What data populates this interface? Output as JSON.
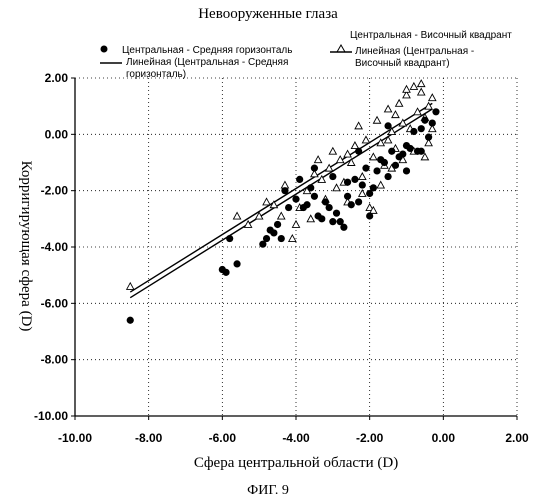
{
  "figure_caption": "ФИГ. 9",
  "chart_data": {
    "type": "scatter",
    "title": "Невооруженные глаза",
    "xlabel": "Сфера центральной области (D)",
    "ylabel": "Корригирующая сфера (D)",
    "xlim": [
      -10,
      2
    ],
    "ylim": [
      -10,
      2
    ],
    "x_ticks": [
      "-10.00",
      "-8.00",
      "-6.00",
      "-4.00",
      "-2.00",
      "0.00",
      "2.00"
    ],
    "y_ticks": [
      "2.00",
      "0.00",
      "-2.00",
      "-4.00",
      "-6.00",
      "-8.00",
      "-10.00"
    ],
    "grid": true,
    "legend": [
      {
        "label": "Центральная - Средняя горизонталь",
        "marker": "filled-circle"
      },
      {
        "label": "Центральная - Височный квадрант",
        "marker": "open-triangle"
      },
      {
        "label": "Линейная (Центральная - Средняя горизонталь)",
        "marker": "line"
      },
      {
        "label": "Линейная (Центральная - Височный квадрант)",
        "marker": "line"
      }
    ],
    "series": [
      {
        "name": "Центральная - Средняя горизонталь",
        "marker": "filled-circle",
        "points": [
          [
            -8.5,
            -6.6
          ],
          [
            -6.0,
            -4.8
          ],
          [
            -5.9,
            -4.9
          ],
          [
            -5.6,
            -4.6
          ],
          [
            -5.8,
            -3.7
          ],
          [
            -4.9,
            -3.9
          ],
          [
            -4.8,
            -3.7
          ],
          [
            -4.7,
            -3.4
          ],
          [
            -4.6,
            -3.5
          ],
          [
            -4.5,
            -3.2
          ],
          [
            -4.4,
            -3.7
          ],
          [
            -4.2,
            -2.6
          ],
          [
            -4.0,
            -2.3
          ],
          [
            -3.8,
            -2.6
          ],
          [
            -3.7,
            -2.5
          ],
          [
            -3.6,
            -1.9
          ],
          [
            -3.5,
            -2.2
          ],
          [
            -3.4,
            -2.9
          ],
          [
            -3.3,
            -3.0
          ],
          [
            -3.2,
            -2.4
          ],
          [
            -3.1,
            -2.6
          ],
          [
            -3.0,
            -1.5
          ],
          [
            -2.9,
            -2.8
          ],
          [
            -2.8,
            -3.1
          ],
          [
            -2.7,
            -3.3
          ],
          [
            -2.6,
            -2.2
          ],
          [
            -2.5,
            -2.5
          ],
          [
            -2.4,
            -1.6
          ],
          [
            -2.3,
            -2.4
          ],
          [
            -2.2,
            -1.8
          ],
          [
            -2.1,
            -1.2
          ],
          [
            -2.0,
            -2.1
          ],
          [
            -1.9,
            -1.9
          ],
          [
            -1.8,
            -1.3
          ],
          [
            -1.7,
            -0.9
          ],
          [
            -1.6,
            -1.0
          ],
          [
            -1.5,
            -1.5
          ],
          [
            -1.4,
            -0.6
          ],
          [
            -1.3,
            -1.1
          ],
          [
            -1.2,
            -0.8
          ],
          [
            -1.1,
            -0.7
          ],
          [
            -1.0,
            -0.4
          ],
          [
            -0.9,
            -0.5
          ],
          [
            -0.8,
            0.1
          ],
          [
            -0.7,
            -0.6
          ],
          [
            -0.6,
            0.2
          ],
          [
            -0.5,
            0.5
          ],
          [
            -0.4,
            -0.1
          ],
          [
            -0.3,
            0.4
          ],
          [
            -0.2,
            0.8
          ],
          [
            -2.0,
            -2.9
          ],
          [
            -2.6,
            -1.7
          ],
          [
            -3.9,
            -1.6
          ],
          [
            -2.3,
            -0.6
          ],
          [
            -1.5,
            0.3
          ],
          [
            -1.0,
            -1.3
          ],
          [
            -0.6,
            -0.6
          ],
          [
            -3.0,
            -3.1
          ],
          [
            -4.3,
            -2.0
          ],
          [
            -3.5,
            -1.2
          ]
        ]
      },
      {
        "name": "Центральная - Височный квадрант",
        "marker": "open-triangle",
        "points": [
          [
            -8.5,
            -5.4
          ],
          [
            -5.6,
            -2.9
          ],
          [
            -5.3,
            -3.2
          ],
          [
            -5.0,
            -2.9
          ],
          [
            -4.8,
            -2.4
          ],
          [
            -4.6,
            -2.5
          ],
          [
            -4.3,
            -1.8
          ],
          [
            -4.1,
            -3.7
          ],
          [
            -4.0,
            -3.2
          ],
          [
            -3.9,
            -2.6
          ],
          [
            -3.7,
            -2.0
          ],
          [
            -3.5,
            -1.4
          ],
          [
            -3.3,
            -1.6
          ],
          [
            -3.2,
            -2.3
          ],
          [
            -3.1,
            -1.2
          ],
          [
            -3.0,
            -0.6
          ],
          [
            -2.8,
            -0.9
          ],
          [
            -2.7,
            -1.7
          ],
          [
            -2.6,
            -2.4
          ],
          [
            -2.5,
            -1.0
          ],
          [
            -2.4,
            -0.4
          ],
          [
            -2.3,
            0.3
          ],
          [
            -2.2,
            -1.5
          ],
          [
            -2.1,
            -0.2
          ],
          [
            -2.0,
            -2.6
          ],
          [
            -1.9,
            -0.8
          ],
          [
            -1.8,
            0.5
          ],
          [
            -1.7,
            -0.3
          ],
          [
            -1.6,
            -1.1
          ],
          [
            -1.5,
            0.9
          ],
          [
            -1.4,
            0.1
          ],
          [
            -1.3,
            -0.5
          ],
          [
            -1.2,
            1.1
          ],
          [
            -1.1,
            0.4
          ],
          [
            -1.0,
            1.4
          ],
          [
            -0.9,
            0.2
          ],
          [
            -0.8,
            1.7
          ],
          [
            -0.7,
            0.8
          ],
          [
            -0.6,
            1.5
          ],
          [
            -0.5,
            0.6
          ],
          [
            -0.4,
            1.0
          ],
          [
            -0.3,
            1.3
          ],
          [
            -0.5,
            -0.8
          ],
          [
            -0.8,
            -0.6
          ],
          [
            -1.1,
            -0.9
          ],
          [
            -1.4,
            -1.2
          ],
          [
            -1.7,
            -1.8
          ],
          [
            -2.2,
            -2.1
          ],
          [
            -2.6,
            -0.7
          ],
          [
            -3.4,
            -0.9
          ],
          [
            -2.9,
            -1.9
          ],
          [
            -0.6,
            1.8
          ],
          [
            -1.0,
            1.6
          ],
          [
            -1.3,
            0.7
          ],
          [
            -0.3,
            0.2
          ],
          [
            -0.4,
            -0.3
          ],
          [
            -1.9,
            -2.7
          ],
          [
            -3.6,
            -3.0
          ],
          [
            -4.4,
            -2.9
          ],
          [
            -1.5,
            -0.2
          ]
        ]
      }
    ],
    "trendlines": [
      {
        "name": "Линейная (Центральная - Средняя горизонталь)",
        "x": [
          -8.5,
          -0.3
        ],
        "y": [
          -5.8,
          0.9
        ]
      },
      {
        "name": "Линейная (Центральная - Височный квадрант)",
        "x": [
          -8.5,
          -0.3
        ],
        "y": [
          -5.6,
          1.1
        ]
      }
    ]
  }
}
